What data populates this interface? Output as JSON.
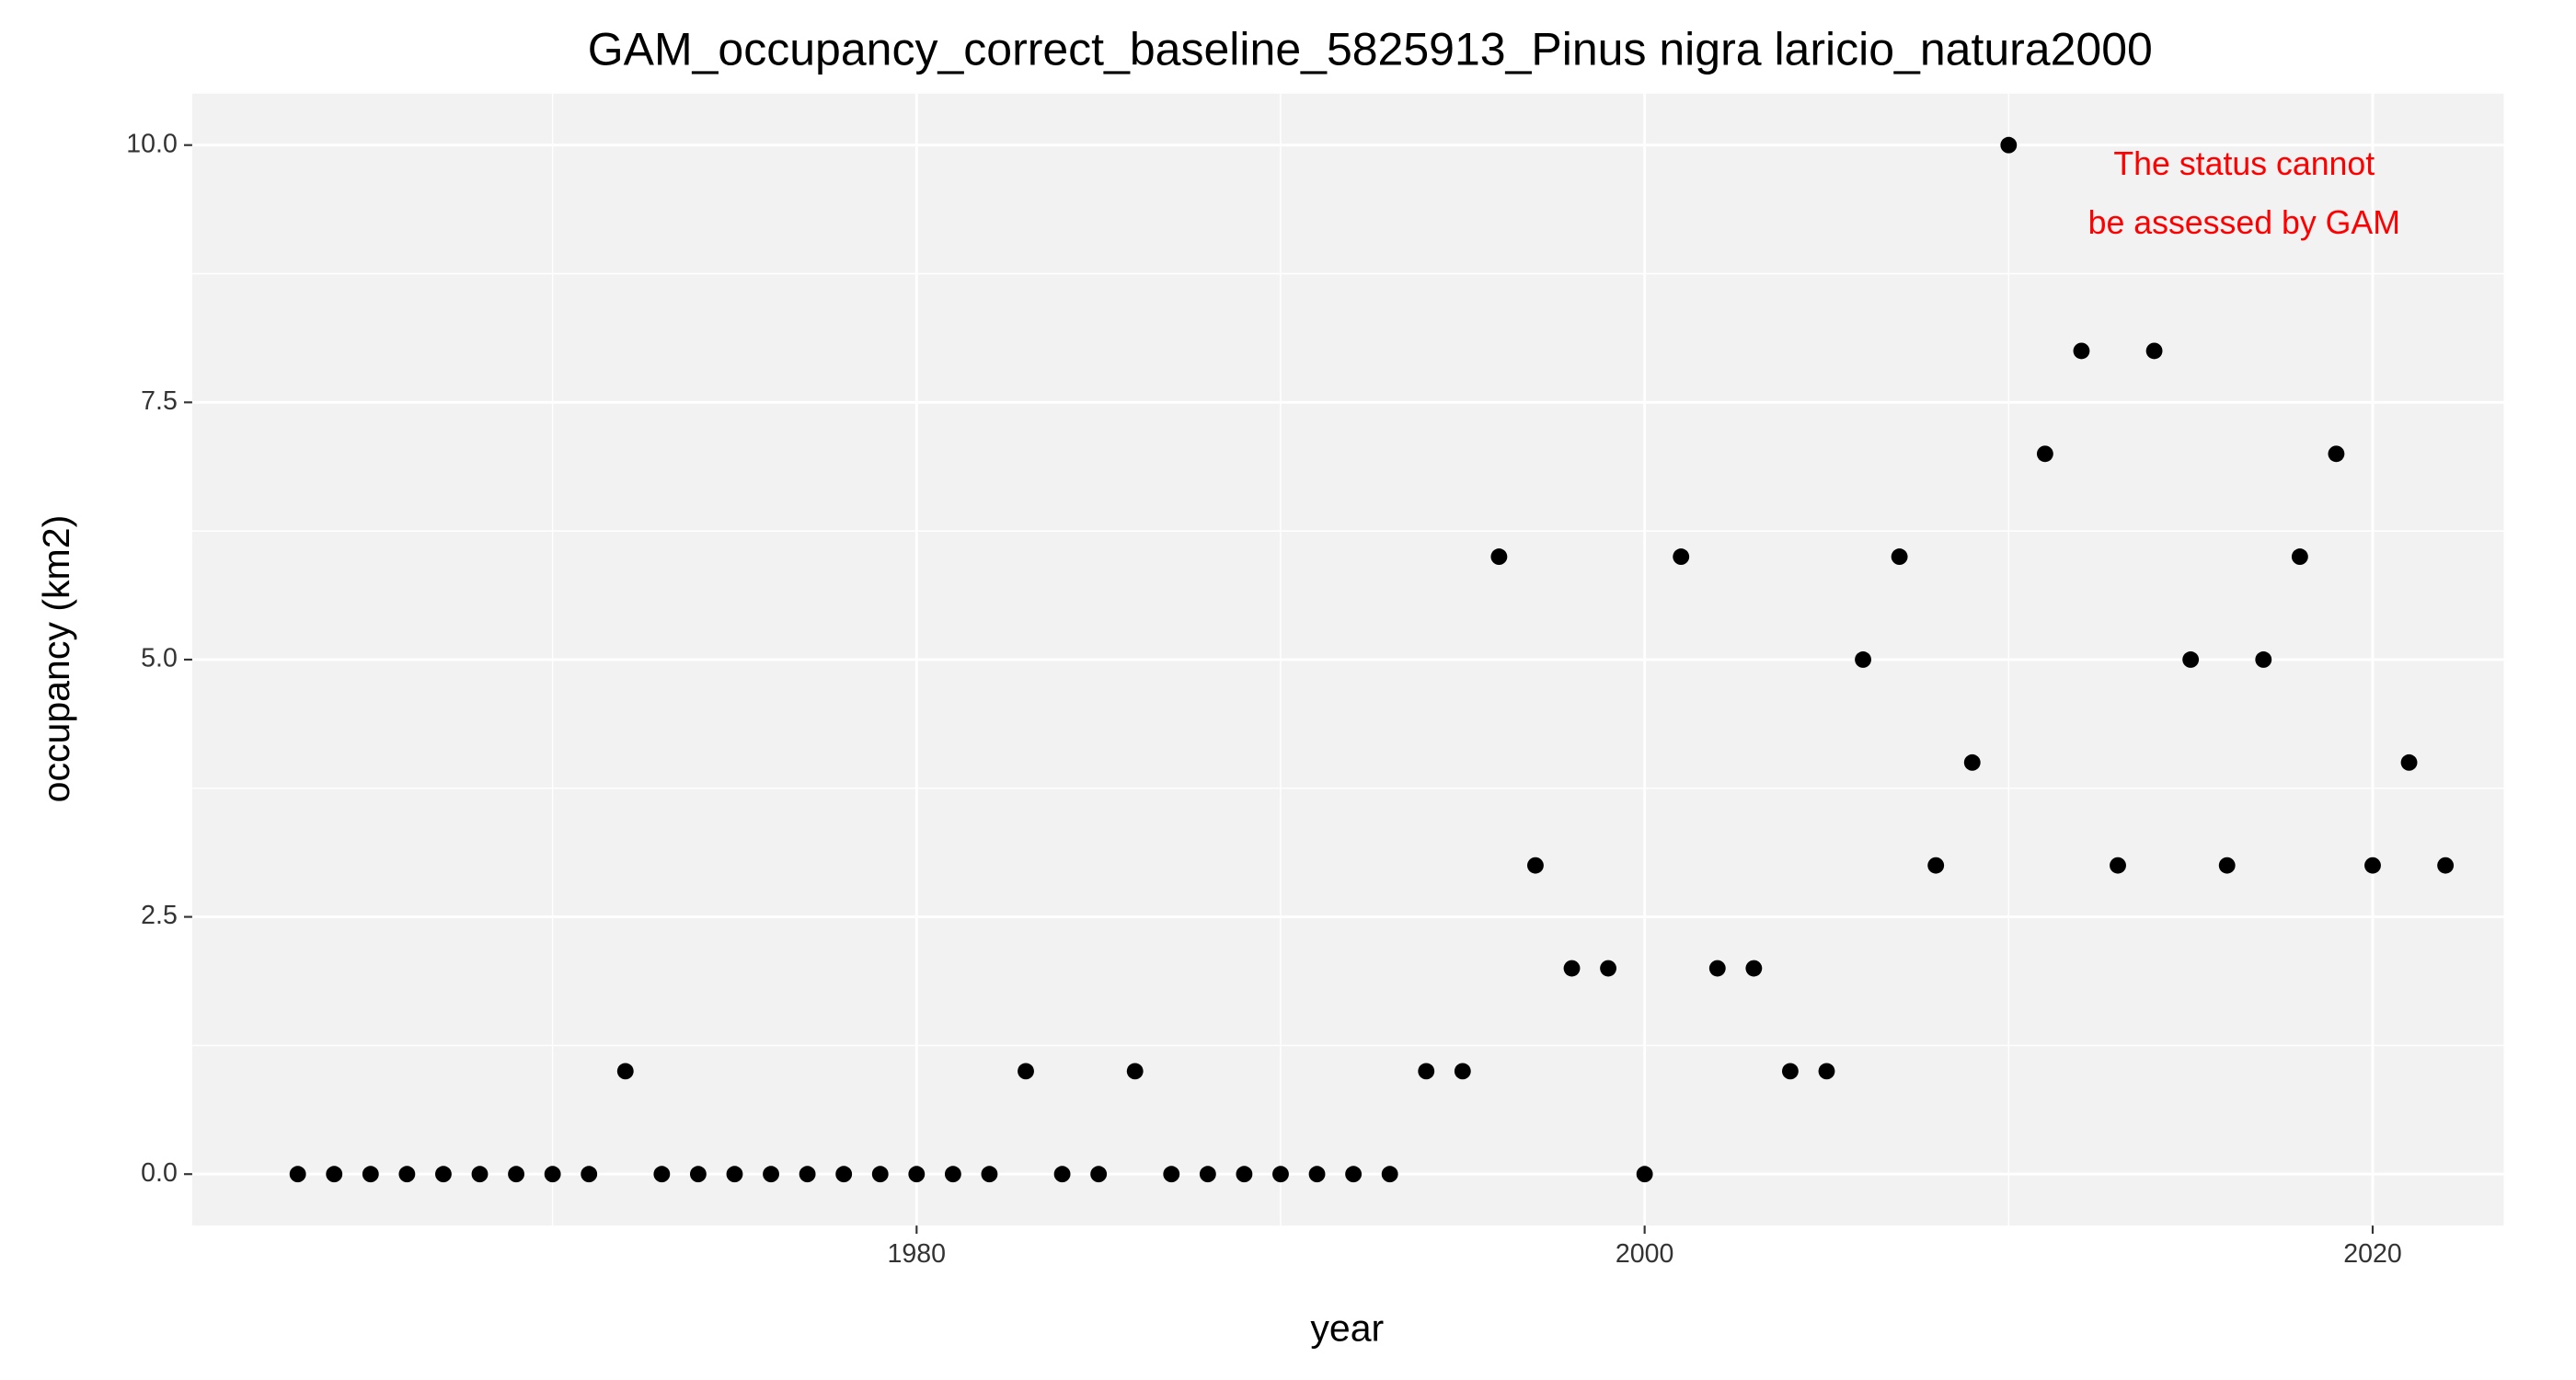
{
  "chart_data": {
    "type": "scatter",
    "title": "GAM_occupancy_correct_baseline_5825913_Pinus nigra laricio_natura2000",
    "x_label": "year",
    "y_label": "occupancy (km2)",
    "annotation": [
      "The status cannot",
      "be assessed by GAM"
    ],
    "annotation_color": "#ff0000",
    "color": "#000000",
    "panel_color": "#f2f2f2",
    "grid": true,
    "xlim": [
      1960.1,
      2023.6
    ],
    "ylim": [
      -0.5,
      10.5
    ],
    "xticks": [
      1980,
      2000,
      2020
    ],
    "yticks": [
      {
        "value": 0,
        "label": "0.0"
      },
      2.5,
      {
        "value": 5,
        "label": "5.0"
      },
      7.5,
      {
        "value": 10,
        "label": "10.0"
      }
    ],
    "x": [
      1963,
      1964,
      1965,
      1966,
      1967,
      1968,
      1969,
      1970,
      1971,
      1972,
      1973,
      1974,
      1975,
      1976,
      1977,
      1978,
      1979,
      1980,
      1981,
      1982,
      1983,
      1984,
      1985,
      1986,
      1987,
      1988,
      1989,
      1990,
      1991,
      1992,
      1993,
      1994,
      1995,
      1996,
      1997,
      1998,
      1999,
      2000,
      2001,
      2002,
      2003,
      2004,
      2005,
      2006,
      2007,
      2008,
      2009,
      2010,
      2011,
      2012,
      2013,
      2014,
      2015,
      2016,
      2017,
      2018,
      2019,
      2020,
      2021,
      2022
    ],
    "values": [
      0,
      0,
      0,
      0,
      0,
      0,
      0,
      0,
      0,
      1,
      0,
      0,
      0,
      0,
      0,
      0,
      0,
      0,
      0,
      0,
      1,
      0,
      0,
      1,
      0,
      0,
      0,
      0,
      0,
      0,
      0,
      1,
      1,
      6,
      3,
      2,
      2,
      0,
      6,
      2,
      2,
      1,
      1,
      5,
      6,
      3,
      4,
      10,
      7,
      8,
      3,
      8,
      5,
      3,
      5,
      6,
      7,
      3,
      4,
      3
    ]
  }
}
